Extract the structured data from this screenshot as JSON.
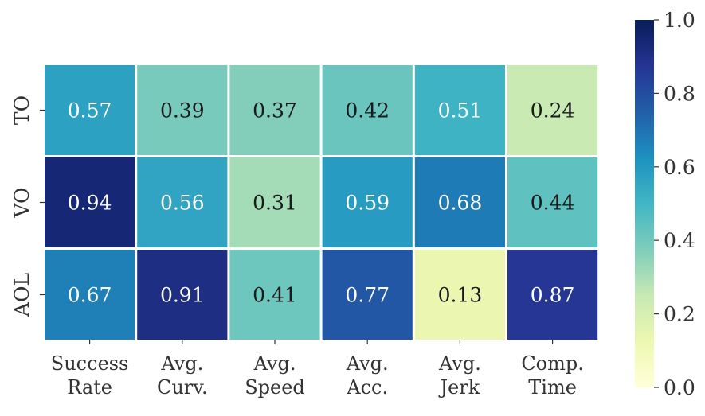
{
  "chart_data": {
    "type": "heatmap",
    "rows": [
      "TO",
      "VO",
      "AOL"
    ],
    "columns": [
      [
        "Success",
        "Rate"
      ],
      [
        "Avg.",
        "Curv."
      ],
      [
        "Avg.",
        "Speed"
      ],
      [
        "Avg.",
        "Acc."
      ],
      [
        "Avg.",
        "Jerk"
      ],
      [
        "Comp.",
        "Time"
      ]
    ],
    "values": [
      [
        0.57,
        0.39,
        0.37,
        0.42,
        0.51,
        0.24
      ],
      [
        0.94,
        0.56,
        0.31,
        0.59,
        0.68,
        0.44
      ],
      [
        0.67,
        0.91,
        0.41,
        0.77,
        0.13,
        0.87
      ]
    ],
    "value_labels": [
      [
        "0.57",
        "0.39",
        "0.37",
        "0.42",
        "0.51",
        "0.24"
      ],
      [
        "0.94",
        "0.56",
        "0.31",
        "0.59",
        "0.68",
        "0.44"
      ],
      [
        "0.67",
        "0.91",
        "0.41",
        "0.77",
        "0.13",
        "0.87"
      ]
    ],
    "colorbar": {
      "range": [
        0.0,
        1.0
      ],
      "ticks": [
        0.0,
        0.2,
        0.4,
        0.6,
        0.8,
        1.0
      ],
      "tick_labels": [
        "0.0",
        "0.2",
        "0.4",
        "0.6",
        "0.8",
        "1.0"
      ],
      "colormap": "YlGnBu",
      "location": "right"
    },
    "title": "",
    "xlabel": "",
    "ylabel": ""
  }
}
